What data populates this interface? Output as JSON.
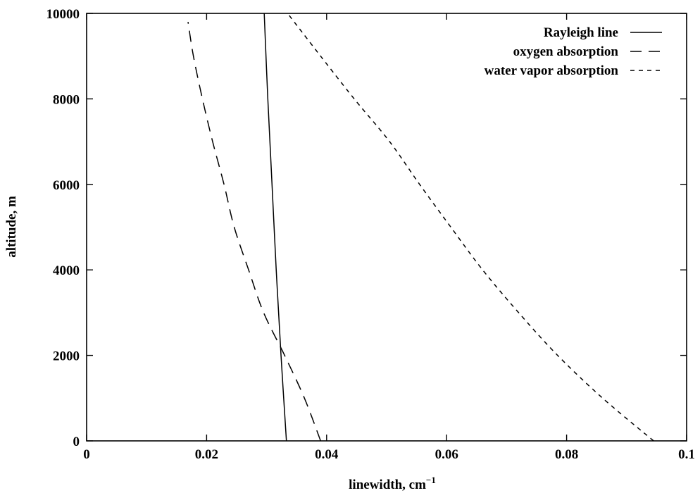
{
  "chart_data": {
    "type": "line",
    "xlabel": "linewidth, cm",
    "xlabel_superscript": "−1",
    "ylabel": "altitude, m",
    "xlim": [
      0,
      0.1
    ],
    "ylim": [
      0,
      10000
    ],
    "x_ticks": [
      0,
      0.02,
      0.04,
      0.06,
      0.08,
      0.1
    ],
    "x_tick_labels": [
      "0",
      "0.02",
      "0.04",
      "0.06",
      "0.08",
      "0.1"
    ],
    "y_ticks": [
      0,
      2000,
      4000,
      6000,
      8000,
      10000
    ],
    "y_tick_labels": [
      "0",
      "2000",
      "4000",
      "6000",
      "8000",
      "10000"
    ],
    "grid": false,
    "legend_position": "top-right",
    "series": [
      {
        "name": "Rayleigh line",
        "style": "solid",
        "points": [
          [
            0.0333,
            0
          ],
          [
            0.0324,
            2000
          ],
          [
            0.0316,
            4000
          ],
          [
            0.0309,
            6000
          ],
          [
            0.0302,
            8000
          ],
          [
            0.0296,
            10000
          ]
        ]
      },
      {
        "name": "oxygen absorption",
        "style": "long-dash",
        "points": [
          [
            0.039,
            0
          ],
          [
            0.0363,
            1000
          ],
          [
            0.033,
            2000
          ],
          [
            0.0295,
            3000
          ],
          [
            0.027,
            4000
          ],
          [
            0.0246,
            5000
          ],
          [
            0.0229,
            6000
          ],
          [
            0.021,
            7000
          ],
          [
            0.0193,
            8000
          ],
          [
            0.0178,
            9000
          ],
          [
            0.0169,
            9800
          ]
        ]
      },
      {
        "name": "water vapor absorption",
        "style": "short-dash",
        "points": [
          [
            0.0945,
            0
          ],
          [
            0.086,
            1000
          ],
          [
            0.0785,
            2000
          ],
          [
            0.072,
            3000
          ],
          [
            0.066,
            4000
          ],
          [
            0.0607,
            5000
          ],
          [
            0.0555,
            6000
          ],
          [
            0.0505,
            7000
          ],
          [
            0.0446,
            8000
          ],
          [
            0.039,
            9000
          ],
          [
            0.0335,
            10000
          ]
        ]
      }
    ]
  }
}
